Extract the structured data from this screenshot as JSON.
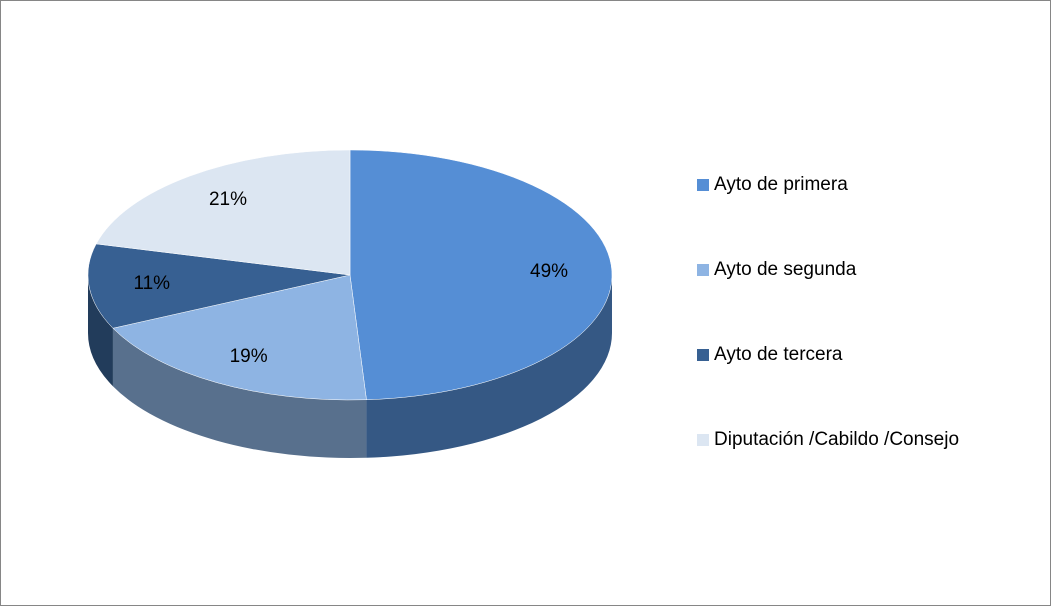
{
  "chart_data": {
    "type": "pie",
    "categories": [
      "Ayto de primera",
      "Ayto de segunda",
      "Ayto de tercera",
      "Diputación /Cabildo /Consejo"
    ],
    "values": [
      49,
      19,
      11,
      21
    ],
    "value_labels": [
      "49%",
      "19%",
      "11%",
      "21%"
    ],
    "colors": [
      "#558ed5",
      "#8eb4e3",
      "#376092",
      "#dce6f2"
    ],
    "legend": "right"
  }
}
